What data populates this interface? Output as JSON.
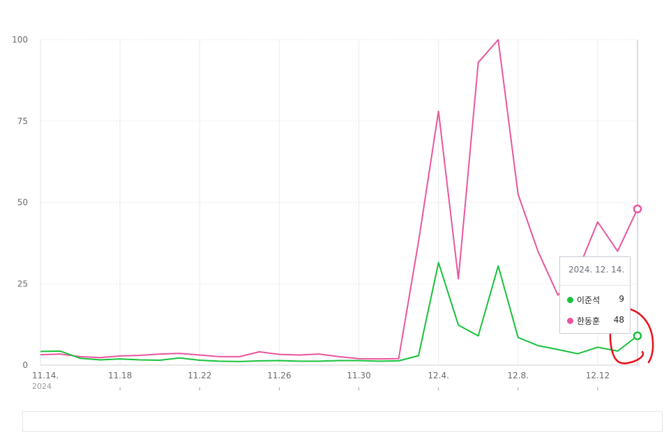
{
  "chart_data": {
    "type": "line",
    "x": [
      "11.14.",
      "11.15.",
      "11.16.",
      "11.17.",
      "11.18.",
      "11.19.",
      "11.20.",
      "11.21.",
      "11.22.",
      "11.23.",
      "11.24.",
      "11.25.",
      "11.26.",
      "11.27.",
      "11.28.",
      "11.29.",
      "11.30.",
      "12.1.",
      "12.2.",
      "12.3.",
      "12.4.",
      "12.5.",
      "12.6.",
      "12.7.",
      "12.8.",
      "12.9.",
      "12.10.",
      "12.11.",
      "12.12.",
      "12.13.",
      "12.14."
    ],
    "x_tick_labels": [
      "11.14.",
      "11.18",
      "11.22",
      "11.26",
      "11.30",
      "12.4.",
      "12.8.",
      "12.12"
    ],
    "x_tick_indices": [
      0,
      4,
      8,
      12,
      16,
      20,
      24,
      28
    ],
    "x_year_label": "2024",
    "y_tick_labels": [
      "0",
      "25",
      "50",
      "75",
      "100"
    ],
    "y_ticks": [
      0,
      25,
      50,
      75,
      100
    ],
    "ylim": [
      0,
      100
    ],
    "series": [
      {
        "name": "이준석",
        "color": "#17c13a",
        "values": [
          4.2,
          4.3,
          2.1,
          1.6,
          1.9,
          1.6,
          1.5,
          2.2,
          1.5,
          1.2,
          1.1,
          1.3,
          1.4,
          1.2,
          1.2,
          1.4,
          1.4,
          1.2,
          1.3,
          2.9,
          31.5,
          12.3,
          9.0,
          30.5,
          8.5,
          6.0,
          4.8,
          3.5,
          5.5,
          4.3,
          9.0
        ]
      },
      {
        "name": "한동훈",
        "color": "#e8559d",
        "values": [
          3.2,
          3.4,
          2.6,
          2.3,
          2.8,
          3.0,
          3.4,
          3.6,
          3.1,
          2.6,
          2.6,
          4.1,
          3.3,
          3.1,
          3.4,
          2.6,
          2.0,
          1.9,
          2.0,
          38.0,
          78.0,
          26.5,
          93.0,
          100.0,
          52.5,
          35.0,
          21.5,
          29.0,
          44.0,
          35.0,
          48.0
        ]
      }
    ],
    "grid": true
  },
  "tooltip": {
    "date": "2024. 12. 14.",
    "rows": [
      {
        "name": "이준석",
        "value": "9",
        "color": "#17c13a"
      },
      {
        "name": "한동훈",
        "value": "48",
        "color": "#e8559d"
      }
    ]
  },
  "annotation": {
    "color": "#e8101a"
  }
}
